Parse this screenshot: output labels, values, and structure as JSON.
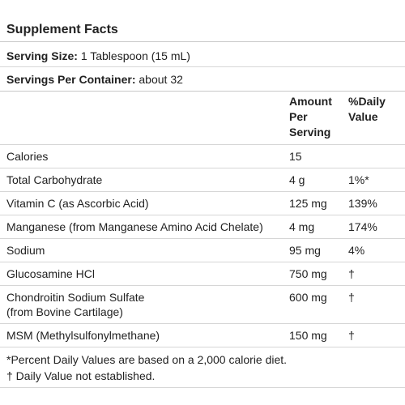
{
  "title": "Supplement Facts",
  "serving_size": {
    "label": "Serving Size:",
    "value": "1 Tablespoon (15 mL)"
  },
  "servings_per_container": {
    "label": "Servings Per Container:",
    "value": "about 32"
  },
  "columns": {
    "amount": [
      "Amount",
      "Per",
      "Serving"
    ],
    "daily_value": [
      "%Daily",
      "Value"
    ]
  },
  "rows": [
    {
      "name": "Calories",
      "amount": "15",
      "dv": ""
    },
    {
      "name": "Total Carbohydrate",
      "amount": "4 g",
      "dv": "1%*"
    },
    {
      "name": "Vitamin C (as Ascorbic Acid)",
      "amount": "125 mg",
      "dv": "139%"
    },
    {
      "name": "Manganese (from Manganese Amino Acid Chelate)",
      "amount": "4 mg",
      "dv": "174%"
    },
    {
      "name": "Sodium",
      "amount": "95 mg",
      "dv": "4%"
    },
    {
      "name": "Glucosamine HCl",
      "amount": "750 mg",
      "dv": "†"
    },
    {
      "name": "Chondroitin Sodium Sulfate",
      "name2": "(from Bovine Cartilage)",
      "amount": "600 mg",
      "dv": "†"
    },
    {
      "name": "MSM (Methylsulfonylmethane)",
      "amount": "150 mg",
      "dv": "†"
    }
  ],
  "footnotes": [
    "*Percent Daily Values are based on a 2,000 calorie diet.",
    "† Daily Value not established."
  ]
}
